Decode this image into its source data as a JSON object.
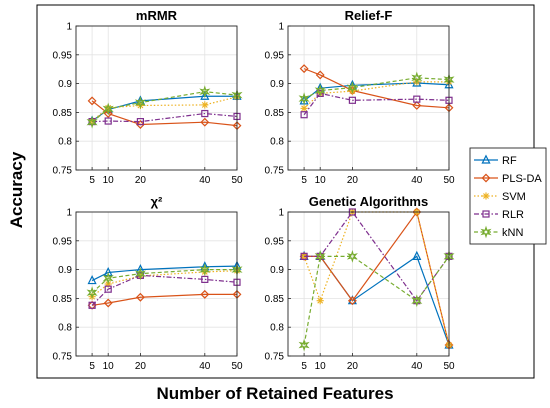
{
  "figure": {
    "xlabel": "Number of Retained Features",
    "ylabel": "Accuracy"
  },
  "legend": {
    "placement": "right",
    "entries": [
      {
        "name": "RF",
        "color": "#0072BD",
        "marker": "triangle",
        "dash": "solid"
      },
      {
        "name": "PLS-DA",
        "color": "#D95319",
        "marker": "diamond",
        "dash": "solid"
      },
      {
        "name": "SVM",
        "color": "#EDB120",
        "marker": "asterisk",
        "dash": "dotted"
      },
      {
        "name": "RLR",
        "color": "#7E2F8E",
        "marker": "square",
        "dash": "dashdot"
      },
      {
        "name": "kNN",
        "color": "#77AC30",
        "marker": "hexagram",
        "dash": "dashed"
      }
    ]
  },
  "chart_data": [
    {
      "type": "line",
      "title": "mRMR",
      "x": [
        5,
        10,
        20,
        40,
        50
      ],
      "xticks": [
        "5",
        "10",
        "20",
        "40",
        "50"
      ],
      "yticks": [
        "0.75",
        "0.8",
        "0.85",
        "0.9",
        "0.95",
        "1"
      ],
      "ylim": [
        0.75,
        1
      ],
      "grid": true,
      "series": [
        {
          "name": "RF",
          "values": [
            0.835,
            0.855,
            0.87,
            0.878,
            0.878
          ]
        },
        {
          "name": "PLS-DA",
          "values": [
            0.87,
            0.848,
            0.829,
            0.833,
            0.827
          ]
        },
        {
          "name": "SVM",
          "values": [
            0.835,
            0.858,
            0.862,
            0.863,
            0.877
          ]
        },
        {
          "name": "RLR",
          "values": [
            0.834,
            0.835,
            0.834,
            0.848,
            0.843
          ]
        },
        {
          "name": "kNN",
          "values": [
            0.833,
            0.856,
            0.867,
            0.886,
            0.88
          ]
        }
      ]
    },
    {
      "type": "line",
      "title": "Relief-F",
      "x": [
        5,
        10,
        20,
        40,
        50
      ],
      "xticks": [
        "5",
        "10",
        "20",
        "40",
        "50"
      ],
      "yticks": [
        "0.75",
        "0.8",
        "0.85",
        "0.9",
        "0.95",
        "1"
      ],
      "ylim": [
        0.75,
        1
      ],
      "grid": true,
      "series": [
        {
          "name": "RF",
          "values": [
            0.87,
            0.892,
            0.897,
            0.901,
            0.898
          ]
        },
        {
          "name": "PLS-DA",
          "values": [
            0.926,
            0.915,
            0.888,
            0.862,
            0.858
          ]
        },
        {
          "name": "SVM",
          "values": [
            0.857,
            0.883,
            0.887,
            0.903,
            0.903
          ]
        },
        {
          "name": "RLR",
          "values": [
            0.846,
            0.883,
            0.871,
            0.873,
            0.871
          ]
        },
        {
          "name": "kNN",
          "values": [
            0.874,
            0.888,
            0.893,
            0.91,
            0.907
          ]
        }
      ]
    },
    {
      "type": "line",
      "title": "χ²",
      "x": [
        5,
        10,
        20,
        40,
        50
      ],
      "xticks": [
        "5",
        "10",
        "20",
        "40",
        "50"
      ],
      "yticks": [
        "0.75",
        "0.8",
        "0.85",
        "0.9",
        "0.95",
        "1"
      ],
      "ylim": [
        0.75,
        1
      ],
      "grid": true,
      "series": [
        {
          "name": "RF",
          "values": [
            0.881,
            0.895,
            0.9,
            0.905,
            0.906
          ]
        },
        {
          "name": "PLS-DA",
          "values": [
            0.838,
            0.842,
            0.852,
            0.857,
            0.857
          ]
        },
        {
          "name": "SVM",
          "values": [
            0.853,
            0.875,
            0.889,
            0.896,
            0.898
          ]
        },
        {
          "name": "RLR",
          "values": [
            0.838,
            0.866,
            0.89,
            0.883,
            0.878
          ]
        },
        {
          "name": "kNN",
          "values": [
            0.86,
            0.885,
            0.893,
            0.9,
            0.9
          ]
        }
      ]
    },
    {
      "type": "line",
      "title": "Genetic Algorithms",
      "x": [
        5,
        10,
        20,
        40,
        50
      ],
      "xticks": [
        "5",
        "10",
        "20",
        "40",
        "50"
      ],
      "yticks": [
        "0.75",
        "0.8",
        "0.85",
        "0.9",
        "0.95",
        "1"
      ],
      "ylim": [
        0.75,
        1
      ],
      "grid": true,
      "series": [
        {
          "name": "RF",
          "values": [
            0.923,
            0.923,
            0.846,
            0.923,
            0.769
          ]
        },
        {
          "name": "PLS-DA",
          "values": [
            0.923,
            0.923,
            0.846,
            1.0,
            0.769
          ]
        },
        {
          "name": "SVM",
          "values": [
            0.923,
            0.846,
            1.0,
            1.0,
            0.769
          ]
        },
        {
          "name": "RLR",
          "values": [
            0.923,
            0.923,
            1.0,
            0.846,
            0.923
          ]
        },
        {
          "name": "kNN",
          "values": [
            0.769,
            0.923,
            0.923,
            0.846,
            0.923
          ]
        }
      ]
    }
  ]
}
